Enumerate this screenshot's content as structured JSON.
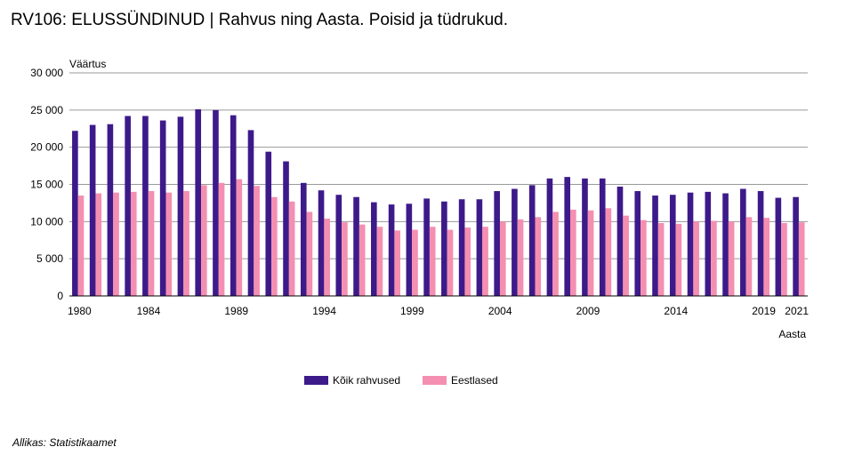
{
  "title": "RV106: ELUSSÜNDINUD | Rahvus ning Aasta. Poisid ja tüdrukud.",
  "source": "Allikas: Statistikaamet",
  "chart_data": {
    "type": "bar",
    "ylabel": "Väärtus",
    "xlabel": "Aasta",
    "ylim": [
      0,
      30000
    ],
    "yticks": [
      0,
      5000,
      10000,
      15000,
      20000,
      25000,
      30000
    ],
    "ytick_labels": [
      "0",
      "5 000",
      "10 000",
      "15 000",
      "20 000",
      "25 000",
      "30 000"
    ],
    "xtick_labels": [
      "1980",
      "1984",
      "1989",
      "1994",
      "1999",
      "2004",
      "2009",
      "2014",
      "2019",
      "2021"
    ],
    "grid": true,
    "legend": "bottom-center",
    "categories": [
      "1980",
      "1981",
      "1982",
      "1983",
      "1984",
      "1985",
      "1986",
      "1987",
      "1988",
      "1989",
      "1990",
      "1991",
      "1992",
      "1993",
      "1994",
      "1995",
      "1996",
      "1997",
      "1998",
      "1999",
      "2000",
      "2001",
      "2002",
      "2003",
      "2004",
      "2005",
      "2006",
      "2007",
      "2008",
      "2009",
      "2010",
      "2011",
      "2012",
      "2013",
      "2014",
      "2015",
      "2016",
      "2017",
      "2018",
      "2019",
      "2020",
      "2021"
    ],
    "series": [
      {
        "name": "Kõik rahvused",
        "color": "#3d1a8a",
        "values": [
          22200,
          23000,
          23100,
          24200,
          24200,
          23600,
          24100,
          25100,
          25000,
          24300,
          22300,
          19400,
          18100,
          15200,
          14200,
          13600,
          13300,
          12600,
          12300,
          12400,
          13100,
          12700,
          13000,
          13000,
          14100,
          14400,
          14900,
          15800,
          16000,
          15800,
          15800,
          14700,
          14100,
          13500,
          13600,
          13900,
          14000,
          13800,
          14400,
          14100,
          13200,
          13300
        ]
      },
      {
        "name": "Eestlased",
        "color": "#f48fb1",
        "values": [
          13500,
          13800,
          13900,
          14000,
          14100,
          13900,
          14100,
          14900,
          15200,
          15700,
          14800,
          13300,
          12700,
          11300,
          10400,
          9900,
          9600,
          9300,
          8800,
          8900,
          9300,
          8900,
          9200,
          9300,
          10000,
          10300,
          10600,
          11300,
          11600,
          11500,
          11800,
          10800,
          10200,
          9800,
          9700,
          10000,
          10100,
          10000,
          10600,
          10500,
          9800,
          9900
        ]
      }
    ]
  }
}
